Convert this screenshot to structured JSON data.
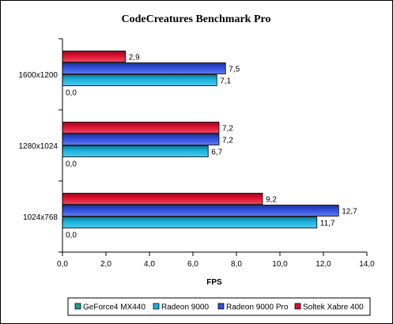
{
  "chart_data": {
    "type": "bar",
    "orientation": "horizontal",
    "title": "CodeCreatures Benchmark Pro",
    "xlabel": "FPS",
    "ylabel": "",
    "xlim": [
      0,
      14
    ],
    "x_ticks": [
      "0,0",
      "2,0",
      "4,0",
      "6,0",
      "8,0",
      "10,0",
      "12,0",
      "14,0"
    ],
    "categories": [
      "1600x1200",
      "1280x1024",
      "1024x768"
    ],
    "series": [
      {
        "name": "GeForce4 MX440",
        "color": "#1f9e8e",
        "values": [
          0.0,
          0.0,
          0.0
        ],
        "labels": [
          "0,0",
          "0,0",
          "0,0"
        ]
      },
      {
        "name": "Radeon 9000",
        "color": "#19b4e0",
        "values": [
          7.1,
          6.7,
          11.7
        ],
        "labels": [
          "7,1",
          "6,7",
          "11,7"
        ]
      },
      {
        "name": "Radeon 9000 Pro",
        "color": "#2f4fe0",
        "values": [
          7.5,
          7.2,
          12.7
        ],
        "labels": [
          "7,5",
          "7,2",
          "12,7"
        ]
      },
      {
        "name": "Soltek Xabre 400",
        "color": "#e01030",
        "values": [
          2.9,
          7.2,
          9.2
        ],
        "labels": [
          "2,9",
          "7,2",
          "9,2"
        ]
      }
    ],
    "grid": false,
    "legend_position": "bottom"
  }
}
